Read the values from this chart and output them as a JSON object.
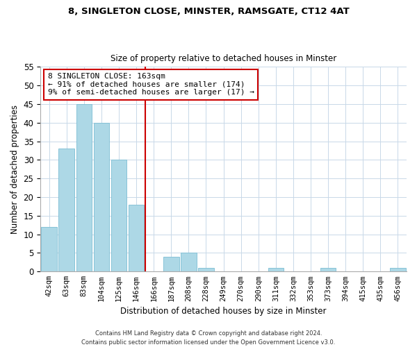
{
  "title": "8, SINGLETON CLOSE, MINSTER, RAMSGATE, CT12 4AT",
  "subtitle": "Size of property relative to detached houses in Minster",
  "xlabel": "Distribution of detached houses by size in Minster",
  "ylabel": "Number of detached properties",
  "bar_labels": [
    "42sqm",
    "63sqm",
    "83sqm",
    "104sqm",
    "125sqm",
    "146sqm",
    "166sqm",
    "187sqm",
    "208sqm",
    "228sqm",
    "249sqm",
    "270sqm",
    "290sqm",
    "311sqm",
    "332sqm",
    "353sqm",
    "373sqm",
    "394sqm",
    "415sqm",
    "435sqm",
    "456sqm"
  ],
  "bar_values": [
    12,
    33,
    45,
    40,
    30,
    18,
    0,
    4,
    5,
    1,
    0,
    0,
    0,
    1,
    0,
    0,
    1,
    0,
    0,
    0,
    1
  ],
  "bar_color": "#add8e6",
  "bar_edge_color": "#7bbdd4",
  "vline_color": "#cc0000",
  "ylim": [
    0,
    55
  ],
  "yticks": [
    0,
    5,
    10,
    15,
    20,
    25,
    30,
    35,
    40,
    45,
    50,
    55
  ],
  "annotation_title": "8 SINGLETON CLOSE: 163sqm",
  "annotation_line1": "← 91% of detached houses are smaller (174)",
  "annotation_line2": "9% of semi-detached houses are larger (17) →",
  "annotation_box_edge": "#cc0000",
  "footnote1": "Contains HM Land Registry data © Crown copyright and database right 2024.",
  "footnote2": "Contains public sector information licensed under the Open Government Licence v3.0.",
  "bg_color": "#f0f4f8"
}
